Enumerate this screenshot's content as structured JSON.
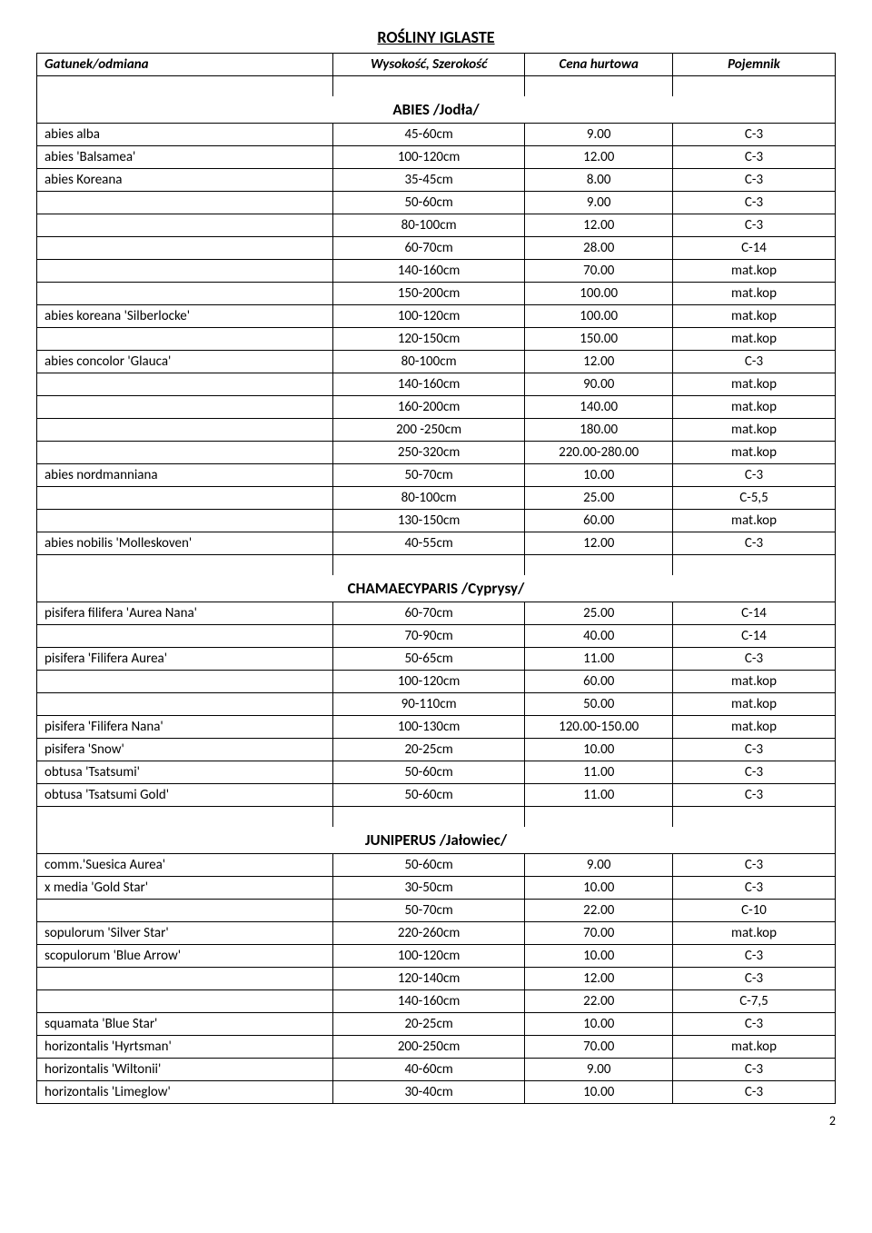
{
  "mainTitle": "ROŚLINY  IGLASTE",
  "headers": {
    "c1": "Gatunek/odmiana",
    "c2": "Wysokość, Szerokość",
    "c3": "Cena hurtowa",
    "c4": "Pojemnik"
  },
  "sections": [
    {
      "title": "ABIES /Jodła/",
      "rows": [
        {
          "c1": "abies alba",
          "c2": "45-60cm",
          "c3": "9.00",
          "c4": "C-3"
        },
        {
          "c1": "abies 'Balsamea'",
          "c2": "100-120cm",
          "c3": "12.00",
          "c4": "C-3"
        },
        {
          "c1": "abies Koreana",
          "c2": "35-45cm",
          "c3": "8.00",
          "c4": "C-3"
        },
        {
          "c1": "",
          "c2": "50-60cm",
          "c3": "9.00",
          "c4": "C-3"
        },
        {
          "c1": "",
          "c2": "80-100cm",
          "c3": "12.00",
          "c4": "C-3"
        },
        {
          "c1": "",
          "c2": "60-70cm",
          "c3": "28.00",
          "c4": "C-14"
        },
        {
          "c1": "",
          "c2": "140-160cm",
          "c3": "70.00",
          "c4": "mat.kop"
        },
        {
          "c1": "",
          "c2": "150-200cm",
          "c3": "100.00",
          "c4": "mat.kop"
        },
        {
          "c1": "abies koreana 'Silberlocke'",
          "c2": "100-120cm",
          "c3": "100.00",
          "c4": "mat.kop"
        },
        {
          "c1": "",
          "c2": "120-150cm",
          "c3": "150.00",
          "c4": "mat.kop"
        },
        {
          "c1": "abies concolor  'Glauca'",
          "c2": "80-100cm",
          "c3": "12.00",
          "c4": "C-3"
        },
        {
          "c1": "",
          "c2": "140-160cm",
          "c3": "90.00",
          "c4": "mat.kop"
        },
        {
          "c1": "",
          "c2": "160-200cm",
          "c3": "140.00",
          "c4": "mat.kop"
        },
        {
          "c1": "",
          "c2": "200 -250cm",
          "c3": "180.00",
          "c4": "mat.kop"
        },
        {
          "c1": "",
          "c2": "250-320cm",
          "c3": "220.00-280.00",
          "c4": "mat.kop"
        },
        {
          "c1": "abies nordmanniana",
          "c2": "50-70cm",
          "c3": "10.00",
          "c4": "C-3"
        },
        {
          "c1": "",
          "c2": "80-100cm",
          "c3": "25.00",
          "c4": "C-5,5"
        },
        {
          "c1": "",
          "c2": "130-150cm",
          "c3": "60.00",
          "c4": "mat.kop"
        },
        {
          "c1": "abies nobilis 'Molleskoven'",
          "c2": "40-55cm",
          "c3": "12.00",
          "c4": "C-3"
        }
      ]
    },
    {
      "title": "CHAMAECYPARIS /Cyprysy/",
      "rows": [
        {
          "c1": "pisifera filifera 'Aurea Nana'",
          "c2": "60-70cm",
          "c3": "25.00",
          "c4": "C-14"
        },
        {
          "c1": "",
          "c2": "70-90cm",
          "c3": "40.00",
          "c4": "C-14"
        },
        {
          "c1": "pisifera 'Filifera Aurea'",
          "c2": "50-65cm",
          "c3": "11.00",
          "c4": "C-3"
        },
        {
          "c1": "",
          "c2": "100-120cm",
          "c3": "60.00",
          "c4": "mat.kop"
        },
        {
          "c1": "",
          "c2": "90-110cm",
          "c3": "50.00",
          "c4": "mat.kop"
        },
        {
          "c1": "pisifera 'Filifera Nana'",
          "c2": "100-130cm",
          "c3": "120.00-150.00",
          "c4": "mat.kop"
        },
        {
          "c1": "pisifera  'Snow'",
          "c2": "20-25cm",
          "c3": "10.00",
          "c4": "C-3"
        },
        {
          "c1": "obtusa 'Tsatsumi'",
          "c2": "50-60cm",
          "c3": "11.00",
          "c4": "C-3"
        },
        {
          "c1": "obtusa 'Tsatsumi Gold'",
          "c2": "50-60cm",
          "c3": "11.00",
          "c4": "C-3"
        }
      ]
    },
    {
      "title": "JUNIPERUS /Jałowiec/",
      "rows": [
        {
          "c1": "comm.'Suesica Aurea'",
          "c2": "50-60cm",
          "c3": "9.00",
          "c4": "C-3"
        },
        {
          "c1": "x media 'Gold Star'",
          "c2": "30-50cm",
          "c3": "10.00",
          "c4": "C-3"
        },
        {
          "c1": "",
          "c2": "50-70cm",
          "c3": "22.00",
          "c4": "C-10"
        },
        {
          "c1": "sopulorum 'Silver Star'",
          "c2": "220-260cm",
          "c3": "70.00",
          "c4": "mat.kop"
        },
        {
          "c1": "scopulorum 'Blue Arrow'",
          "c2": "100-120cm",
          "c3": "10.00",
          "c4": "C-3"
        },
        {
          "c1": "",
          "c2": "120-140cm",
          "c3": "12.00",
          "c4": "C-3"
        },
        {
          "c1": "",
          "c2": "140-160cm",
          "c3": "22.00",
          "c4": "C-7,5"
        },
        {
          "c1": "squamata 'Blue Star'",
          "c2": "20-25cm",
          "c3": "10.00",
          "c4": "C-3"
        },
        {
          "c1": "horizontalis 'Hyrtsman'",
          "c2": "200-250cm",
          "c3": "70.00",
          "c4": "mat.kop"
        },
        {
          "c1": "horizontalis 'Wiltonii'",
          "c2": "40-60cm",
          "c3": "9.00",
          "c4": "C-3"
        },
        {
          "c1": "horizontalis 'Limeglow'",
          "c2": "30-40cm",
          "c3": "10.00",
          "c4": "C-3"
        }
      ]
    }
  ],
  "pageNumber": "2"
}
